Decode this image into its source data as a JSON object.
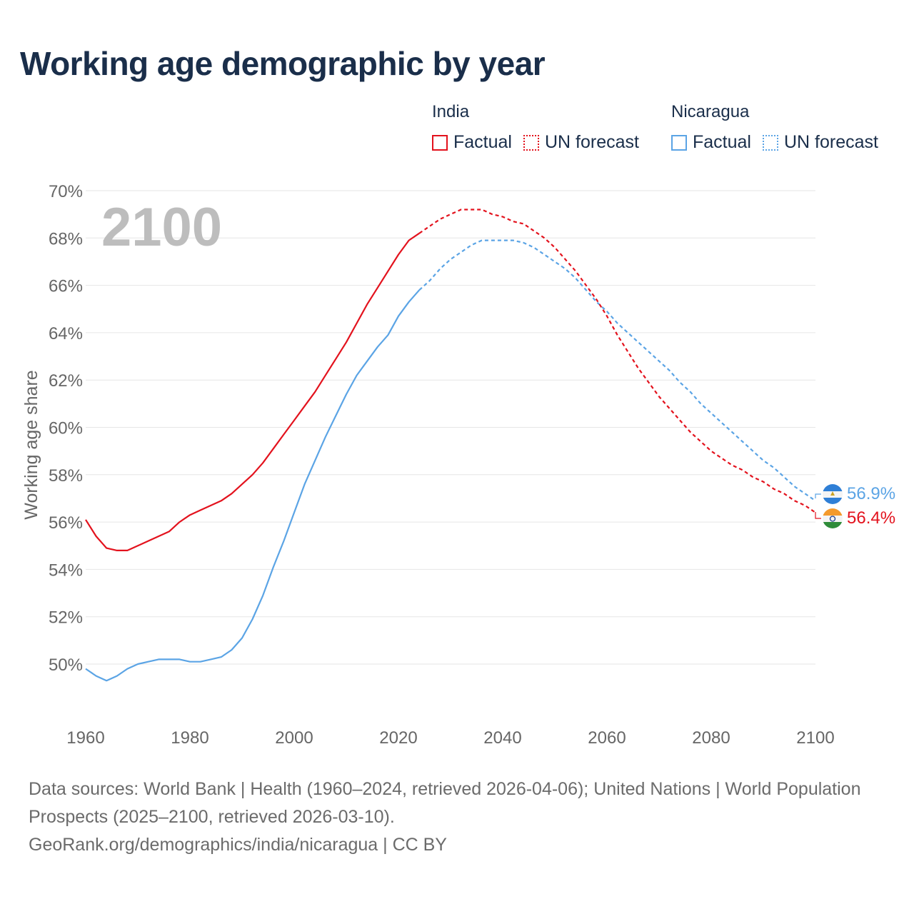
{
  "title": "Working age demographic by year",
  "legend": {
    "groups": [
      {
        "name": "India",
        "factual_label": "Factual",
        "forecast_label": "UN forecast",
        "color": "#e3121d"
      },
      {
        "name": "Nicaragua",
        "factual_label": "Factual",
        "forecast_label": "UN forecast",
        "color": "#5ba4e5"
      }
    ]
  },
  "year_label": "2100",
  "end_labels": {
    "nicaragua": "56.9%",
    "india": "56.4%"
  },
  "sources": {
    "line1": "Data sources: World Bank | Health (1960–2024, retrieved 2026-04-06); United Nations | World Population Prospects (2025–2100, retrieved 2026-03-10).",
    "line2": "GeoRank.org/demographics/india/nicaragua | CC BY"
  },
  "chart_data": {
    "type": "line",
    "title": "Working age demographic by year",
    "xlabel": "",
    "ylabel": "Working age share",
    "xlim": [
      1960,
      2100
    ],
    "ylim": [
      47.5,
      70
    ],
    "x_ticks": [
      1960,
      1980,
      2000,
      2020,
      2040,
      2060,
      2080,
      2100
    ],
    "y_ticks": [
      50,
      52,
      54,
      56,
      58,
      60,
      62,
      64,
      66,
      68,
      70
    ],
    "y_tick_labels": [
      "50%",
      "52%",
      "54%",
      "56%",
      "58%",
      "60%",
      "62%",
      "64%",
      "66%",
      "68%",
      "70%"
    ],
    "x_tick_labels": [
      "1960",
      "1980",
      "2000",
      "2020",
      "2040",
      "2060",
      "2080",
      "2100"
    ],
    "grid": true,
    "series": [
      {
        "name": "India",
        "color": "#e3121d",
        "factual": {
          "x": [
            1960,
            1962,
            1964,
            1966,
            1968,
            1970,
            1972,
            1974,
            1976,
            1978,
            1980,
            1982,
            1984,
            1986,
            1988,
            1990,
            1992,
            1994,
            1996,
            1998,
            2000,
            2002,
            2004,
            2006,
            2008,
            2010,
            2012,
            2014,
            2016,
            2018,
            2020,
            2022,
            2024
          ],
          "y": [
            56.1,
            55.4,
            54.9,
            54.8,
            54.8,
            55.0,
            55.2,
            55.4,
            55.6,
            56.0,
            56.3,
            56.5,
            56.7,
            56.9,
            57.2,
            57.6,
            58.0,
            58.5,
            59.1,
            59.7,
            60.3,
            60.9,
            61.5,
            62.2,
            62.9,
            63.6,
            64.4,
            65.2,
            65.9,
            66.6,
            67.3,
            67.9,
            68.2
          ]
        },
        "forecast": {
          "x": [
            2024,
            2026,
            2028,
            2030,
            2032,
            2034,
            2036,
            2038,
            2040,
            2042,
            2044,
            2046,
            2048,
            2050,
            2052,
            2054,
            2056,
            2058,
            2060,
            2062,
            2064,
            2066,
            2068,
            2070,
            2072,
            2074,
            2076,
            2078,
            2080,
            2082,
            2084,
            2086,
            2088,
            2090,
            2092,
            2094,
            2096,
            2098,
            2100
          ],
          "y": [
            68.2,
            68.5,
            68.8,
            69.0,
            69.2,
            69.2,
            69.2,
            69.0,
            68.9,
            68.7,
            68.6,
            68.3,
            68.0,
            67.6,
            67.1,
            66.6,
            66.0,
            65.4,
            64.7,
            63.9,
            63.2,
            62.5,
            61.9,
            61.3,
            60.8,
            60.3,
            59.8,
            59.4,
            59.0,
            58.7,
            58.4,
            58.2,
            57.9,
            57.7,
            57.4,
            57.2,
            56.9,
            56.7,
            56.4
          ]
        },
        "end_label": "56.4%"
      },
      {
        "name": "Nicaragua",
        "color": "#5ba4e5",
        "factual": {
          "x": [
            1960,
            1962,
            1964,
            1966,
            1968,
            1970,
            1972,
            1974,
            1976,
            1978,
            1980,
            1982,
            1984,
            1986,
            1988,
            1990,
            1992,
            1994,
            1996,
            1998,
            2000,
            2002,
            2004,
            2006,
            2008,
            2010,
            2012,
            2014,
            2016,
            2018,
            2020,
            2022,
            2024
          ],
          "y": [
            49.8,
            49.5,
            49.3,
            49.5,
            49.8,
            50.0,
            50.1,
            50.2,
            50.2,
            50.2,
            50.1,
            50.1,
            50.2,
            50.3,
            50.6,
            51.1,
            51.9,
            52.9,
            54.1,
            55.2,
            56.4,
            57.6,
            58.6,
            59.6,
            60.5,
            61.4,
            62.2,
            62.8,
            63.4,
            63.9,
            64.7,
            65.3,
            65.8
          ]
        },
        "forecast": {
          "x": [
            2024,
            2026,
            2028,
            2030,
            2032,
            2034,
            2036,
            2038,
            2040,
            2042,
            2044,
            2046,
            2048,
            2050,
            2052,
            2054,
            2056,
            2058,
            2060,
            2062,
            2064,
            2066,
            2068,
            2070,
            2072,
            2074,
            2076,
            2078,
            2080,
            2082,
            2084,
            2086,
            2088,
            2090,
            2092,
            2094,
            2096,
            2098,
            2100
          ],
          "y": [
            65.8,
            66.2,
            66.7,
            67.1,
            67.4,
            67.7,
            67.9,
            67.9,
            67.9,
            67.9,
            67.8,
            67.6,
            67.3,
            67.0,
            66.7,
            66.3,
            65.8,
            65.3,
            64.9,
            64.4,
            64.0,
            63.6,
            63.2,
            62.8,
            62.4,
            61.9,
            61.5,
            61.0,
            60.6,
            60.2,
            59.8,
            59.4,
            59.0,
            58.6,
            58.3,
            57.9,
            57.5,
            57.2,
            56.9
          ]
        },
        "end_label": "56.9%"
      }
    ]
  }
}
